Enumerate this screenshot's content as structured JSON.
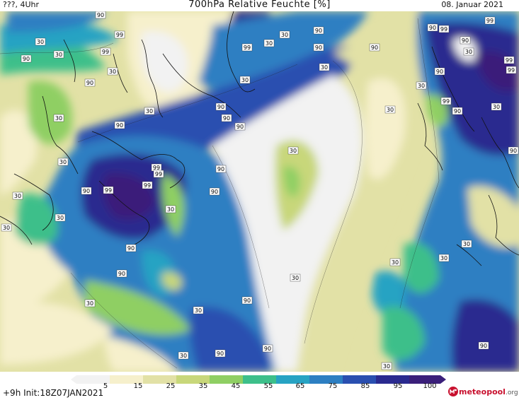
{
  "header": {
    "left": "???, 4Uhr",
    "title": "700hPa Relative Feuchte [%]",
    "date": "08. Januar 2021"
  },
  "colors": {
    "c5": "#f2f2f2",
    "c15": "#f6f0cc",
    "c25": "#e2e1a6",
    "c35": "#c8d77a",
    "c45": "#8fcf63",
    "c55": "#3dbf8a",
    "c65": "#27a3c3",
    "c75": "#2d7fc2",
    "c85": "#2a4fb0",
    "c95": "#2a2a8f",
    "c100": "#3a1f7a",
    "coast": "#111111"
  },
  "legend": {
    "ticks": [
      "5",
      "15",
      "25",
      "35",
      "45",
      "55",
      "65",
      "75",
      "85",
      "95",
      "100"
    ]
  },
  "map_labels": [
    "90",
    "30",
    "99"
  ],
  "footer": {
    "run": "+9h  Init:18Z07JAN2021",
    "logo_main": "meteopool",
    "logo_tld": ".org"
  }
}
